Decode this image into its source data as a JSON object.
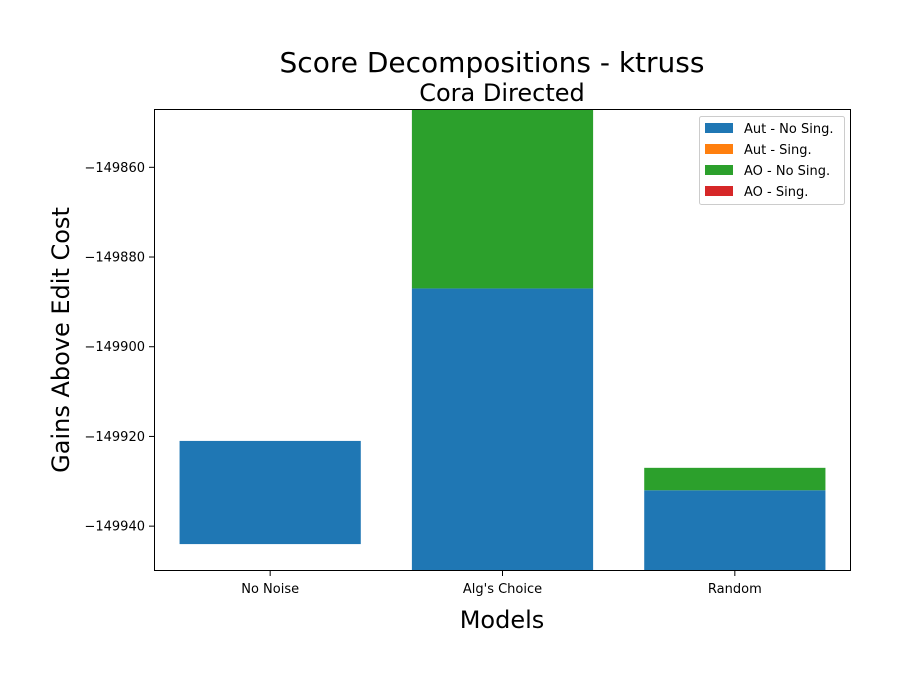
{
  "chart_data": {
    "type": "bar",
    "stacked": true,
    "title": "Score Decompositions - ktruss",
    "subtitle": "Cora Directed",
    "xlabel": "Models",
    "ylabel": "Gains Above Edit Cost",
    "categories": [
      "No Noise",
      "Alg's Choice",
      "Random"
    ],
    "ylim": [
      -149950,
      -149847
    ],
    "yticks": [
      -149860,
      -149880,
      -149900,
      -149920,
      -149940
    ],
    "ytick_labels": [
      "−149860",
      "−149880",
      "−149900",
      "−149920",
      "−149940"
    ],
    "bars": [
      {
        "category": "No Noise",
        "segments": [
          {
            "series": "Aut - No Sing.",
            "from": -149944,
            "to": -149921
          }
        ]
      },
      {
        "category": "Alg's Choice",
        "segments": [
          {
            "series": "Aut - No Sing.",
            "from": -149950,
            "to": -149887
          },
          {
            "series": "AO - No Sing.",
            "from": -149887,
            "to": -149847
          }
        ]
      },
      {
        "category": "Random",
        "segments": [
          {
            "series": "Aut - No Sing.",
            "from": -149950,
            "to": -149932
          },
          {
            "series": "AO - No Sing.",
            "from": -149932,
            "to": -149927
          }
        ]
      }
    ],
    "series": [
      {
        "name": "Aut - No Sing.",
        "color": "#1f77b4"
      },
      {
        "name": "Aut - Sing.",
        "color": "#ff7f0e"
      },
      {
        "name": "AO - No Sing.",
        "color": "#2ca02c"
      },
      {
        "name": "AO - Sing.",
        "color": "#d62728"
      }
    ],
    "legend_position": "top-right",
    "grid": false
  }
}
